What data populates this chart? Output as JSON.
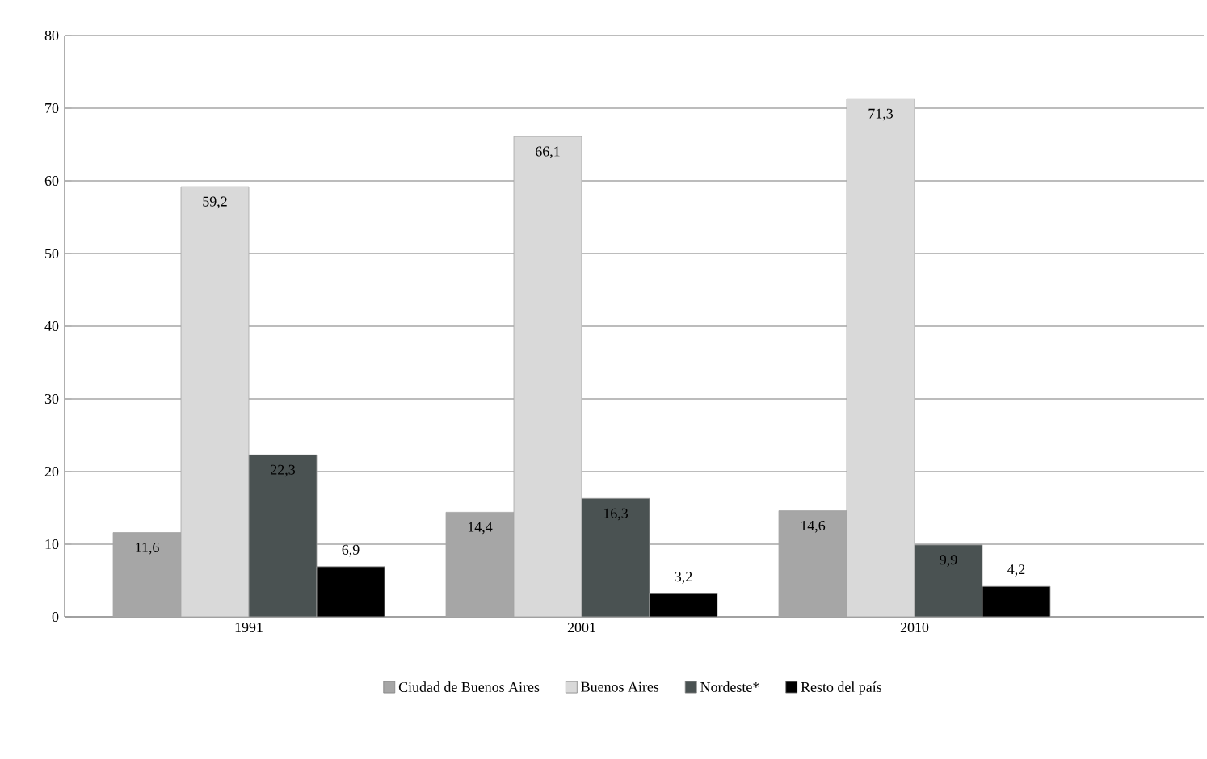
{
  "chart_data": {
    "type": "bar",
    "categories": [
      "1991",
      "2001",
      "2010"
    ],
    "series": [
      {
        "name": "Ciudad de Buenos Aires",
        "color": "#a6a6a6",
        "values": [
          11.6,
          14.4,
          14.6
        ],
        "value_labels": [
          "11,6",
          "14,4",
          "14,6"
        ]
      },
      {
        "name": "Buenos Aires",
        "color": "#d9d9d9",
        "values": [
          59.2,
          66.1,
          71.3
        ],
        "value_labels": [
          "59,2",
          "66,1",
          "71,3"
        ]
      },
      {
        "name": "Nordeste*",
        "color": "#4a5252",
        "values": [
          22.3,
          16.3,
          9.9
        ],
        "value_labels": [
          "22,3",
          "16,3",
          "9,9"
        ]
      },
      {
        "name": "Resto del país",
        "color": "#000000",
        "values": [
          6.9,
          3.2,
          4.2
        ],
        "value_labels": [
          "6,9",
          "3,2",
          "4,2"
        ]
      }
    ],
    "ylim": [
      0,
      80
    ],
    "yticks": [
      0,
      10,
      20,
      30,
      40,
      50,
      60,
      70,
      80
    ],
    "grid": "y",
    "legend": "bottom"
  }
}
